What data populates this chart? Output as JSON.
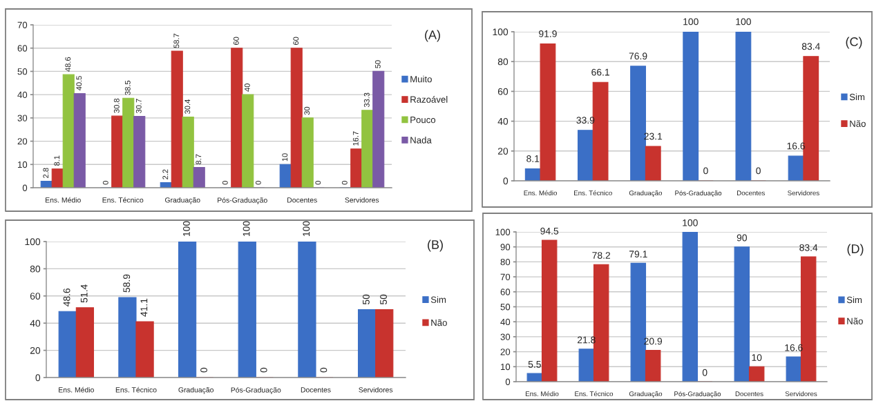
{
  "chart_data": [
    {
      "type": "bar",
      "categories": [
        "Ens. Médio",
        "Ens. Técnico",
        "Graduação",
        "Pós-Graduação",
        "Docentes",
        "Servidores"
      ],
      "series": [
        {
          "name": "Muito",
          "color": "#3b6fc6",
          "values": [
            2.8,
            0,
            2.2,
            0,
            10,
            0
          ]
        },
        {
          "name": "Razoável",
          "color": "#c8332e",
          "values": [
            8.1,
            30.8,
            58.7,
            60,
            60,
            16.7
          ]
        },
        {
          "name": "Pouco",
          "color": "#92c340",
          "values": [
            48.6,
            38.5,
            30.4,
            40,
            30,
            33.3
          ]
        },
        {
          "name": "Nada",
          "color": "#7a5aa6",
          "values": [
            40.5,
            30.7,
            8.7,
            0,
            0,
            50
          ]
        }
      ],
      "ylim": [
        0,
        70
      ],
      "yticks": [
        0,
        10,
        20,
        30,
        40,
        50,
        60,
        70
      ],
      "grid": "y",
      "legend": "right",
      "data_labels": true,
      "annotations": [
        "(A)"
      ]
    },
    {
      "type": "bar",
      "categories": [
        "Ens. Médio",
        "Ens. Técnico",
        "Graduação",
        "Pós-Graduação",
        "Docentes",
        "Servidores"
      ],
      "series": [
        {
          "name": "Sim",
          "color": "#3b6fc6",
          "values": [
            48.6,
            58.9,
            100,
            100,
            100,
            50
          ]
        },
        {
          "name": "Não",
          "color": "#c8332e",
          "values": [
            51.4,
            41.1,
            0,
            0,
            0,
            50
          ]
        }
      ],
      "ylim": [
        0,
        100
      ],
      "yticks": [
        0,
        20,
        40,
        60,
        80,
        100
      ],
      "grid": "y",
      "legend": "right",
      "data_labels": true,
      "annotations": [
        "(B)"
      ]
    },
    {
      "type": "bar",
      "categories": [
        "Ens. Médio",
        "Ens. Técnico",
        "Graduação",
        "Pós-Graduação",
        "Docentes",
        "Servidores"
      ],
      "series": [
        {
          "name": "Sim",
          "color": "#3b6fc6",
          "values": [
            8.1,
            33.9,
            76.9,
            100,
            100,
            16.6
          ]
        },
        {
          "name": "Não",
          "color": "#c8332e",
          "values": [
            91.9,
            66.1,
            23.1,
            0,
            0,
            83.4
          ]
        }
      ],
      "ylim": [
        0,
        100
      ],
      "yticks": [
        0,
        20,
        40,
        60,
        80,
        100
      ],
      "grid": "y",
      "legend": "right",
      "data_labels": true,
      "annotations": [
        "(C)"
      ]
    },
    {
      "type": "bar",
      "categories": [
        "Ens. Médio",
        "Ens. Técnico",
        "Graduação",
        "Pós-Graduação",
        "Docentes",
        "Servidores"
      ],
      "series": [
        {
          "name": "Sim",
          "color": "#3b6fc6",
          "values": [
            5.5,
            21.8,
            79.1,
            100,
            90,
            16.6
          ]
        },
        {
          "name": "Não",
          "color": "#c8332e",
          "values": [
            94.5,
            78.2,
            20.9,
            0,
            10,
            83.4
          ]
        }
      ],
      "ylim": [
        0,
        100
      ],
      "yticks": [
        0,
        10,
        20,
        30,
        40,
        50,
        60,
        70,
        80,
        90,
        100
      ],
      "grid": "y",
      "legend": "right",
      "data_labels": true,
      "annotations": [
        "(D)"
      ]
    }
  ]
}
